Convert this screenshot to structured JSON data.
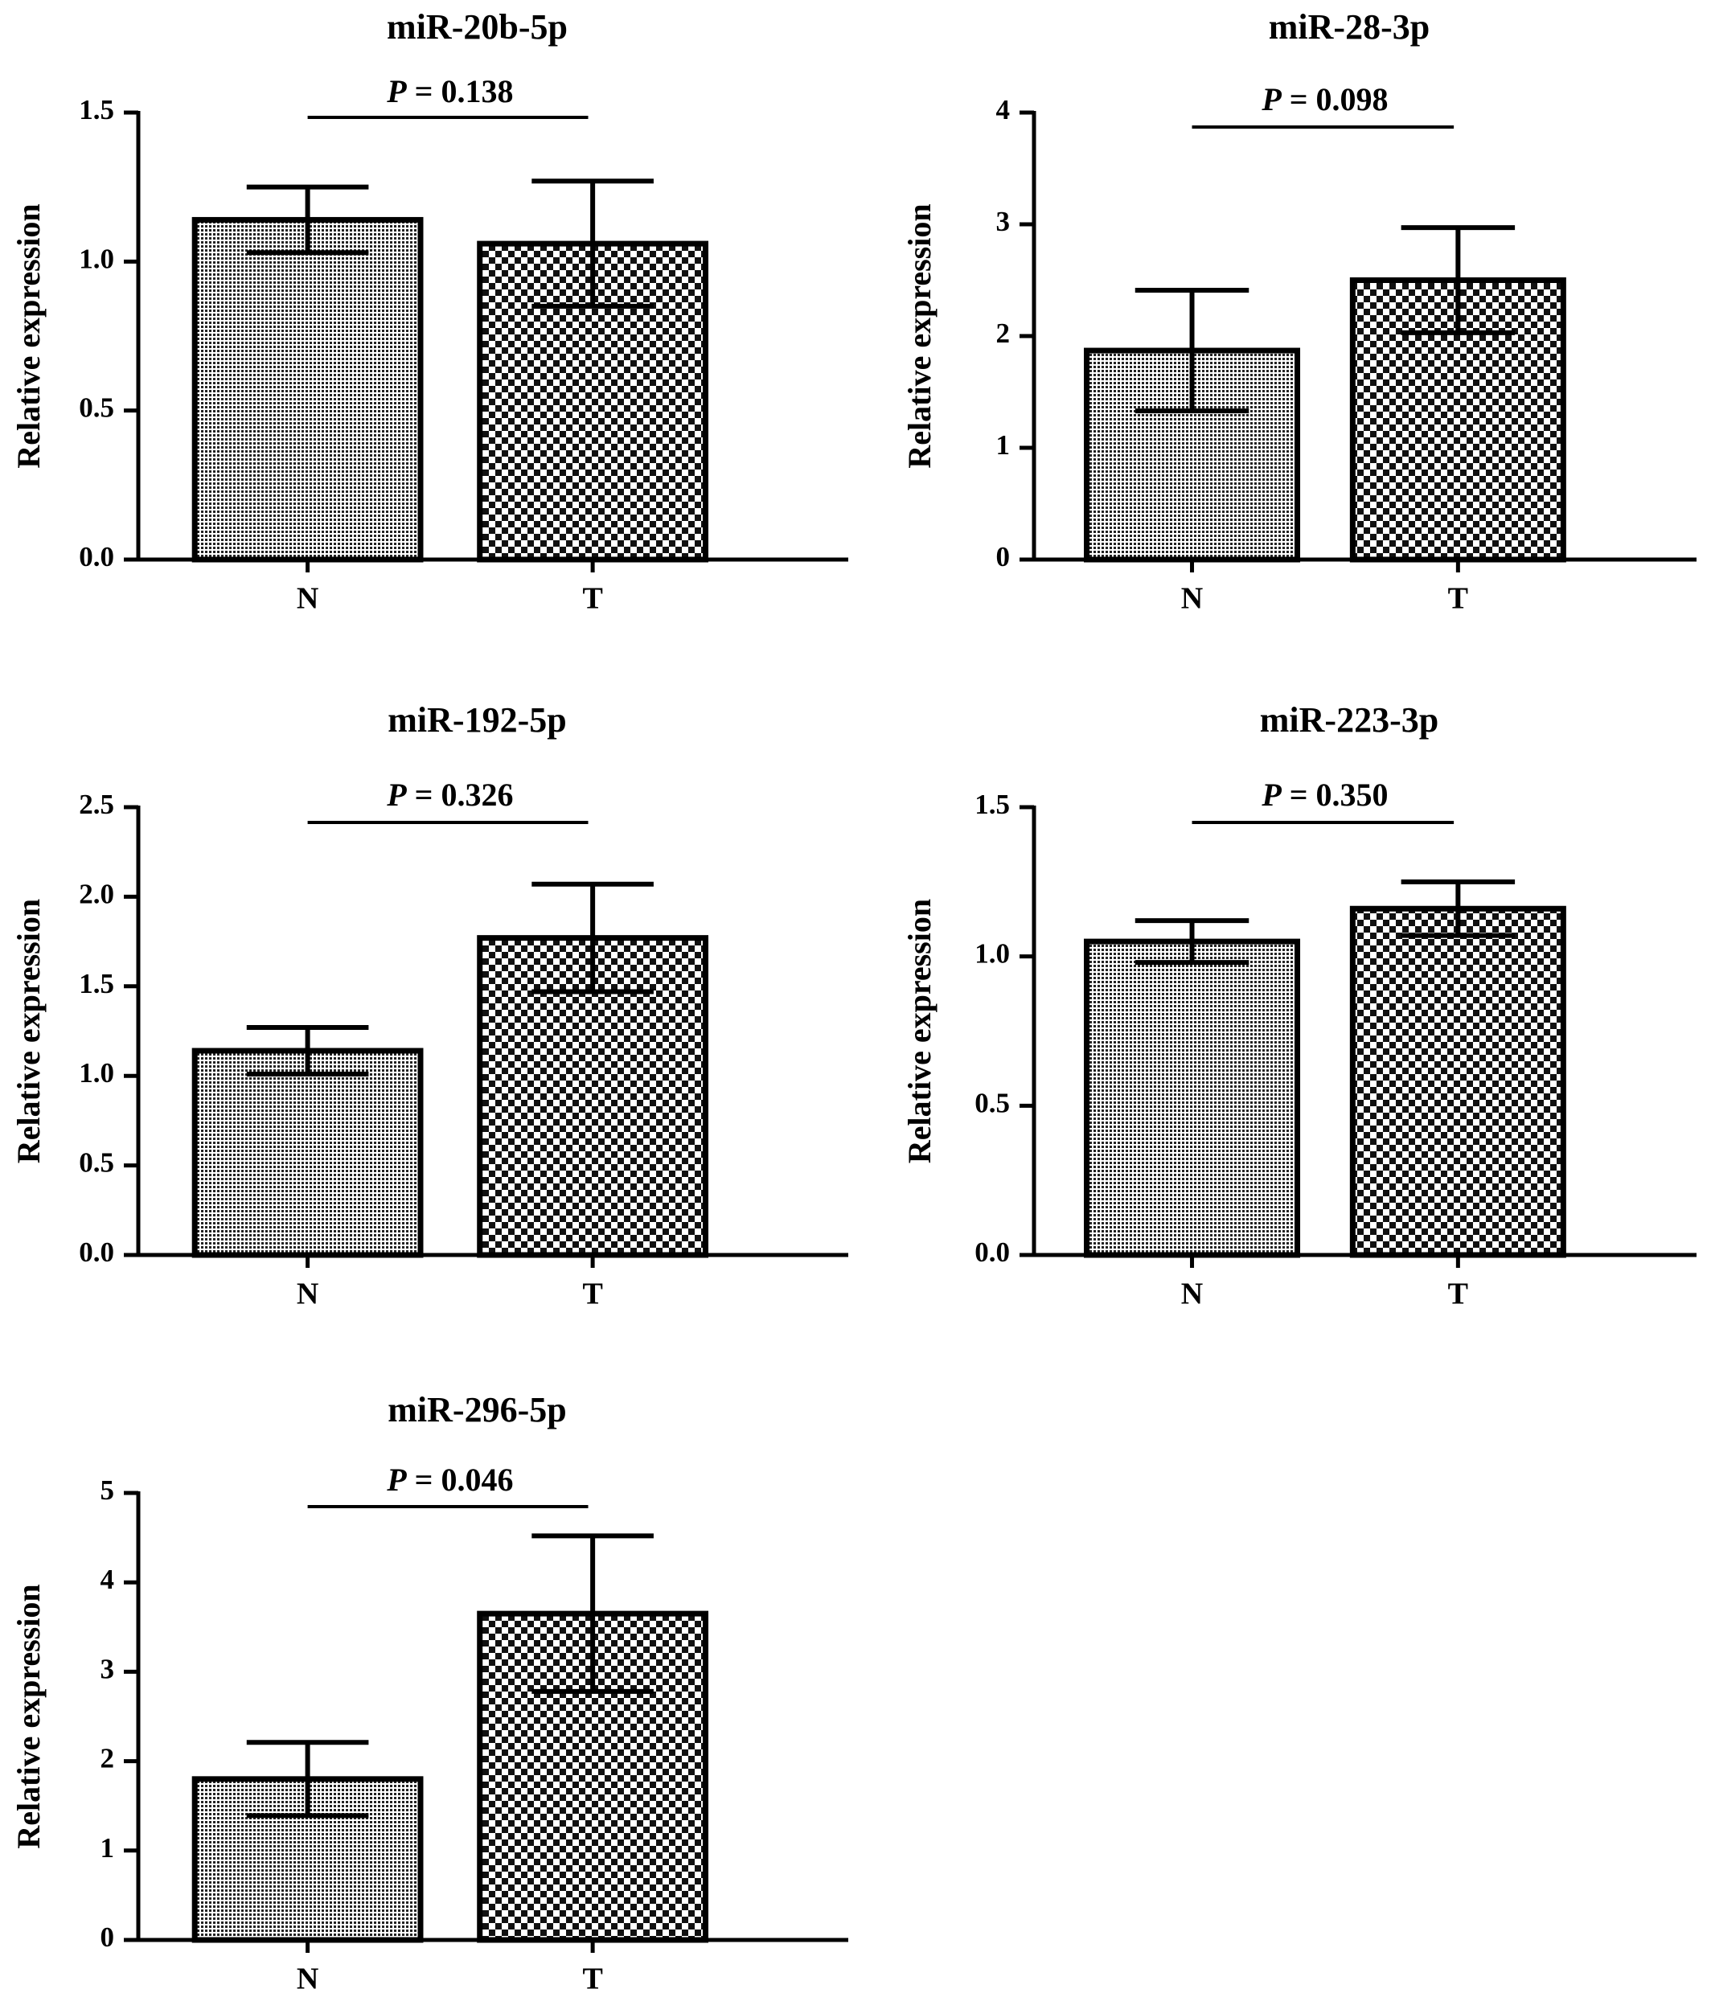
{
  "chart_data": [
    {
      "type": "bar",
      "title": "miR-20b-5p",
      "ylabel": "Relative expression",
      "categories": [
        "N",
        "T"
      ],
      "values": [
        1.14,
        1.06
      ],
      "errors": [
        0.11,
        0.21
      ],
      "ylim": [
        0,
        1.5
      ],
      "yticks": [
        0,
        0.5,
        1.0,
        1.5
      ],
      "yticklabels": [
        "0.0",
        "0.5",
        "1.0",
        "1.5"
      ],
      "annotation": {
        "p_symbol": "P",
        "p_text": " = 0.138"
      },
      "grid": false
    },
    {
      "type": "bar",
      "title": "miR-28-3p",
      "ylabel": "Relative expression",
      "categories": [
        "N",
        "T"
      ],
      "values": [
        1.87,
        2.5
      ],
      "errors": [
        0.54,
        0.47
      ],
      "ylim": [
        0,
        4
      ],
      "yticks": [
        0,
        1,
        2,
        3,
        4
      ],
      "yticklabels": [
        "0",
        "1",
        "2",
        "3",
        "4"
      ],
      "annotation": {
        "p_symbol": "P",
        "p_text": " = 0.098"
      },
      "grid": false
    },
    {
      "type": "bar",
      "title": "miR-192-5p",
      "ylabel": "Relative expression",
      "categories": [
        "N",
        "T"
      ],
      "values": [
        1.14,
        1.77
      ],
      "errors": [
        0.13,
        0.3
      ],
      "ylim": [
        0,
        2.5
      ],
      "yticks": [
        0,
        0.5,
        1.0,
        1.5,
        2.0,
        2.5
      ],
      "yticklabels": [
        "0.0",
        "0.5",
        "1.0",
        "1.5",
        "2.0",
        "2.5"
      ],
      "annotation": {
        "p_symbol": "P",
        "p_text": " = 0.326"
      },
      "grid": false
    },
    {
      "type": "bar",
      "title": "miR-223-3p",
      "ylabel": "Relative expression",
      "categories": [
        "N",
        "T"
      ],
      "values": [
        1.05,
        1.16
      ],
      "errors": [
        0.07,
        0.09
      ],
      "ylim": [
        0,
        1.5
      ],
      "yticks": [
        0,
        0.5,
        1.0,
        1.5
      ],
      "yticklabels": [
        "0.0",
        "0.5",
        "1.0",
        "1.5"
      ],
      "annotation": {
        "p_symbol": "P",
        "p_text": " = 0.350"
      },
      "grid": false
    },
    {
      "type": "bar",
      "title": "miR-296-5p",
      "ylabel": "Relative expression",
      "categories": [
        "N",
        "T"
      ],
      "values": [
        1.8,
        3.65
      ],
      "errors": [
        0.41,
        0.87
      ],
      "ylim": [
        0,
        5
      ],
      "yticks": [
        0,
        1,
        2,
        3,
        4,
        5
      ],
      "yticklabels": [
        "0",
        "1",
        "2",
        "3",
        "4",
        "5"
      ],
      "annotation": {
        "p_symbol": "P",
        "p_text": " = 0.046"
      },
      "grid": false
    }
  ]
}
